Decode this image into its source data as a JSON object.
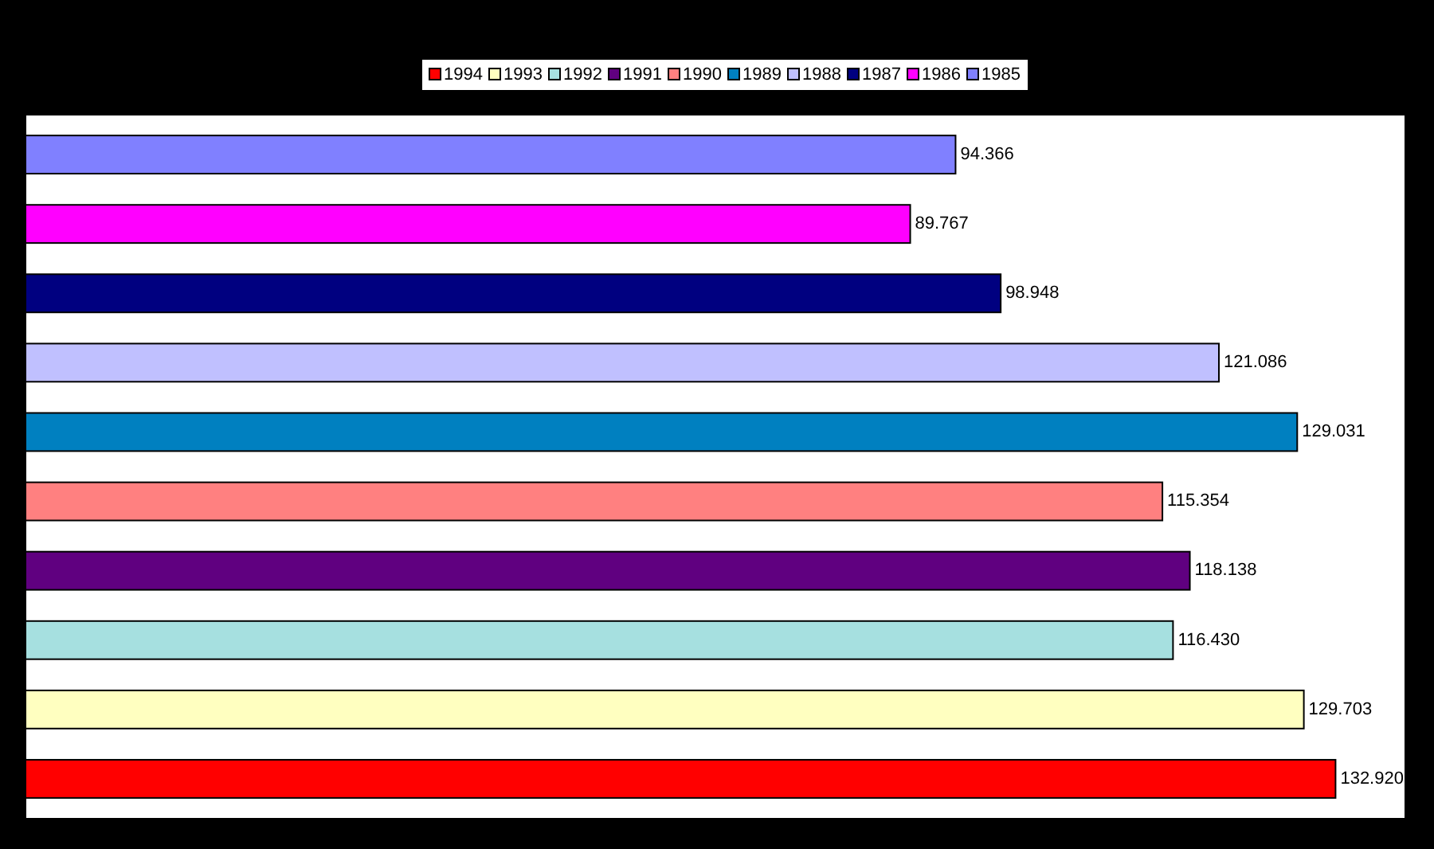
{
  "chart_data": {
    "type": "bar",
    "orientation": "horizontal",
    "categories": [
      null,
      null,
      null,
      null,
      null,
      null,
      null,
      null,
      null,
      null
    ],
    "xlim": [
      0,
      140
    ],
    "stacked": true,
    "legend": "top",
    "grid": false,
    "series": [
      {
        "name": "1994",
        "color": "#ff0000",
        "values": [
          null,
          null,
          null,
          null,
          null,
          null,
          null,
          null,
          null,
          132.92
        ],
        "value_labels": [
          null,
          null,
          null,
          null,
          null,
          null,
          null,
          null,
          null,
          "132.920"
        ]
      },
      {
        "name": "1993",
        "color": "#ffffc0",
        "values": [
          null,
          null,
          null,
          null,
          null,
          null,
          null,
          null,
          129.703,
          null
        ],
        "value_labels": [
          null,
          null,
          null,
          null,
          null,
          null,
          null,
          null,
          "129.703",
          null
        ]
      },
      {
        "name": "1992",
        "color": "#a6e0e0",
        "values": [
          null,
          null,
          null,
          null,
          null,
          null,
          null,
          116.43,
          null,
          null
        ],
        "value_labels": [
          null,
          null,
          null,
          null,
          null,
          null,
          null,
          "116.430",
          null,
          null
        ]
      },
      {
        "name": "1991",
        "color": "#600080",
        "values": [
          null,
          null,
          null,
          null,
          null,
          null,
          118.138,
          null,
          null,
          null
        ],
        "value_labels": [
          null,
          null,
          null,
          null,
          null,
          null,
          "118.138",
          null,
          null,
          null
        ]
      },
      {
        "name": "1990",
        "color": "#ff8080",
        "values": [
          null,
          null,
          null,
          null,
          null,
          115.354,
          null,
          null,
          null,
          null
        ],
        "value_labels": [
          null,
          null,
          null,
          null,
          null,
          "115.354",
          null,
          null,
          null,
          null
        ]
      },
      {
        "name": "1989",
        "color": "#0080c0",
        "values": [
          null,
          null,
          null,
          null,
          129.031,
          null,
          null,
          null,
          null,
          null
        ],
        "value_labels": [
          null,
          null,
          null,
          null,
          "129.031",
          null,
          null,
          null,
          null,
          null
        ]
      },
      {
        "name": "1988",
        "color": "#c0c0ff",
        "values": [
          null,
          null,
          null,
          121.086,
          null,
          null,
          null,
          null,
          null,
          null
        ],
        "value_labels": [
          null,
          null,
          null,
          "121.086",
          null,
          null,
          null,
          null,
          null,
          null
        ]
      },
      {
        "name": "1987",
        "color": "#000080",
        "values": [
          null,
          null,
          98.948,
          null,
          null,
          null,
          null,
          null,
          null,
          null
        ],
        "value_labels": [
          null,
          null,
          "98.948",
          null,
          null,
          null,
          null,
          null,
          null,
          null
        ]
      },
      {
        "name": "1986",
        "color": "#ff00ff",
        "values": [
          null,
          89.767,
          null,
          null,
          null,
          null,
          null,
          null,
          null,
          null
        ],
        "value_labels": [
          null,
          "89.767",
          null,
          null,
          null,
          null,
          null,
          null,
          null,
          null
        ]
      },
      {
        "name": "1985",
        "color": "#8080ff",
        "values": [
          94.366,
          null,
          null,
          null,
          null,
          null,
          null,
          null,
          null,
          null
        ],
        "value_labels": [
          "94.366",
          null,
          null,
          null,
          null,
          null,
          null,
          null,
          null,
          null
        ]
      }
    ]
  }
}
